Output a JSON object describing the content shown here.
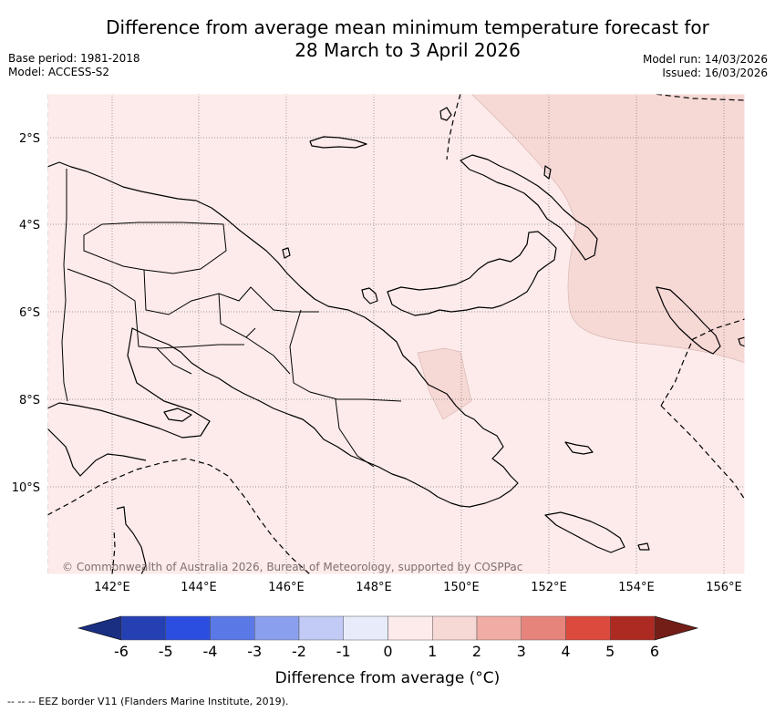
{
  "header": {
    "title_line1": "Difference from average mean minimum temperature forecast for",
    "title_line2": "28 March to 3 April 2026",
    "base_period": "Base period: 1981-2018",
    "model": "Model: ACCESS-S2",
    "model_run": "Model run: 14/03/2026",
    "issued": "Issued: 16/03/2026"
  },
  "map": {
    "latitude_labels": [
      "2°S",
      "4°S",
      "6°S",
      "8°S",
      "10°S"
    ],
    "longitude_labels": [
      "142°E",
      "144°E",
      "146°E",
      "148°E",
      "150°E",
      "152°E",
      "154°E",
      "156°E"
    ],
    "copyright": "© Commonwealth of Australia 2026, Bureau of Meteorology, supported by COSPPac",
    "background_anomaly_range": [
      0,
      1
    ],
    "warmer_anomaly_range": [
      1,
      2
    ],
    "land_fill": "#fcebea",
    "warm_fill": "#f6d8d5"
  },
  "colorbar": {
    "tick_labels": [
      "-6",
      "-5",
      "-4",
      "-3",
      "-2",
      "-1",
      "0",
      "1",
      "2",
      "3",
      "4",
      "5",
      "6"
    ],
    "colors": [
      "#2540b3",
      "#2c4ee0",
      "#5a78e6",
      "#8aa0ee",
      "#c2cbf6",
      "#e8ecfa",
      "#fcebea",
      "#f6d8d5",
      "#f0aca5",
      "#e6847b",
      "#dc4a3e",
      "#ad2a22"
    ],
    "under_color": "#1a2e82",
    "over_color": "#741e18",
    "title": "Difference from average (°C)"
  },
  "footnote": "--  --  -- EEZ border V11 (Flanders Marine Institute, 2019)."
}
